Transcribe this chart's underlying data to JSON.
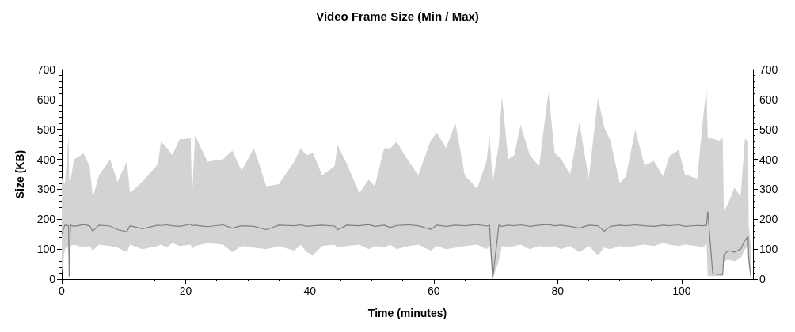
{
  "chart_data": {
    "type": "line",
    "title": "Video Frame Size (Min / Max)",
    "xlabel": "Time (minutes)",
    "ylabel": "Size (KB)",
    "x": [
      0,
      0.5,
      1.1,
      1.2,
      1.4,
      2,
      3.5,
      4.5,
      5,
      6,
      7.8,
      9,
      10.5,
      11,
      13,
      15.5,
      16,
      17,
      17.8,
      19,
      20.8,
      21,
      21.5,
      23.5,
      26,
      27.5,
      29,
      31,
      33,
      35,
      37.5,
      38.5,
      39.5,
      40.5,
      42,
      44,
      44.5,
      46,
      48,
      49.5,
      50.5,
      52,
      53,
      54,
      56,
      57.5,
      59.5,
      60.5,
      62,
      63.5,
      65,
      67,
      68.5,
      69,
      69.5,
      70.5,
      71,
      72,
      73,
      74,
      75.5,
      77,
      78.5,
      79.5,
      80.5,
      82,
      83.5,
      85,
      86.5,
      87.5,
      88.5,
      90,
      91,
      92.5,
      94,
      95.5,
      97,
      98,
      99.5,
      100.5,
      102.5,
      103.5,
      104,
      104.2,
      105,
      106,
      106.6,
      106.8,
      107.5,
      108.5,
      109.5,
      110.2,
      110.7,
      110.8,
      111.2
    ],
    "series": [
      {
        "color": "#808080",
        "values": [
          150,
          180,
          178,
          10,
          180,
          176,
          182,
          178,
          160,
          180,
          177,
          165,
          158,
          178,
          168,
          180,
          179,
          181,
          178,
          176,
          183,
          178,
          180,
          175,
          181,
          170,
          178,
          176,
          165,
          180,
          178,
          181,
          176,
          178,
          180,
          177,
          165,
          180,
          178,
          182,
          176,
          180,
          172,
          179,
          181,
          178,
          166,
          180,
          176,
          180,
          178,
          182,
          177,
          180,
          0,
          180,
          176,
          180,
          178,
          181,
          176,
          180,
          182,
          178,
          180,
          176,
          170,
          180,
          178,
          160,
          176,
          180,
          178,
          181,
          178,
          176,
          180,
          178,
          181,
          176,
          179,
          178,
          180,
          225,
          18,
          16,
          15,
          82,
          95,
          90,
          100,
          130,
          140,
          70,
          0
        ],
        "lower": [
          20,
          100,
          110,
          5,
          110,
          115,
          105,
          110,
          95,
          115,
          110,
          105,
          90,
          115,
          100,
          110,
          115,
          105,
          120,
          110,
          115,
          100,
          110,
          120,
          115,
          90,
          110,
          105,
          100,
          110,
          95,
          115,
          90,
          80,
          110,
          115,
          105,
          110,
          115,
          100,
          110,
          105,
          115,
          100,
          110,
          115,
          95,
          110,
          100,
          105,
          110,
          115,
          100,
          110,
          0,
          60,
          110,
          105,
          110,
          115,
          100,
          110,
          105,
          110,
          100,
          110,
          90,
          110,
          80,
          105,
          100,
          110,
          105,
          110,
          115,
          110,
          120,
          115,
          110,
          115,
          110,
          105,
          120,
          10,
          10,
          10,
          10,
          60,
          65,
          60,
          70,
          100,
          110,
          40,
          0
        ],
        "upper": [
          340,
          317,
          478,
          330,
          330,
          400,
          420,
          377,
          272,
          347,
          400,
          325,
          392,
          287,
          325,
          384,
          459,
          437,
          414,
          466,
          470,
          265,
          481,
          392,
          400,
          429,
          362,
          437,
          310,
          317,
          392,
          437,
          414,
          422,
          347,
          377,
          448,
          384,
          287,
          332,
          310,
          437,
          437,
          459,
          392,
          347,
          463,
          489,
          437,
          522,
          347,
          302,
          392,
          481,
          320,
          451,
          612,
          400,
          414,
          515,
          414,
          377,
          625,
          422,
          402,
          350,
          522,
          335,
          607,
          507,
          462,
          320,
          343,
          499,
          380,
          395,
          343,
          410,
          432,
          350,
          335,
          551,
          633,
          470,
          469,
          462,
          470,
          227,
          253,
          306,
          276,
          469,
          460,
          179,
          100
        ]
      }
    ],
    "xlim": [
      0,
      111.5
    ],
    "xticks": [
      0,
      20,
      40,
      60,
      80,
      100
    ],
    "ylim": [
      0,
      700
    ],
    "yticks": [
      0,
      100,
      200,
      300,
      400,
      500,
      600,
      700
    ],
    "y2lim": [
      0,
      700
    ],
    "y2ticks": [
      0,
      100,
      200,
      300,
      400,
      500,
      600,
      700
    ],
    "marker": "none",
    "grid": false
  }
}
